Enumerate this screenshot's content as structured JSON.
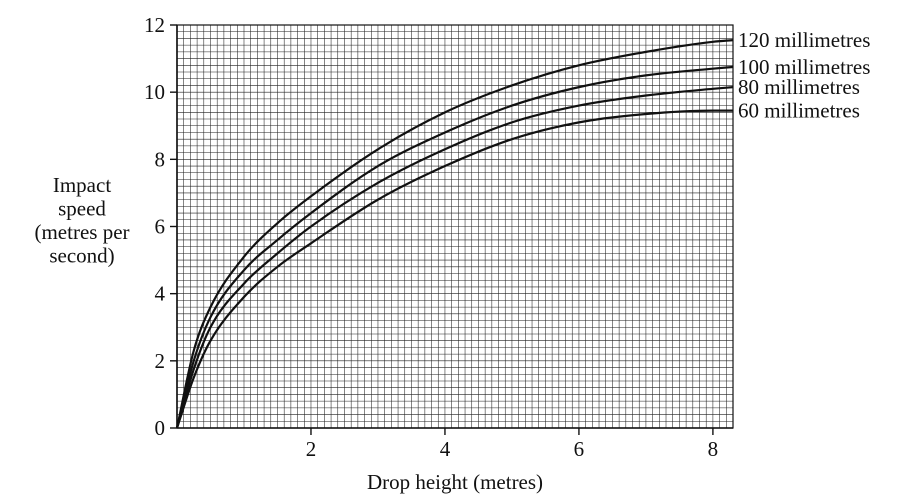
{
  "chart_data": {
    "type": "line",
    "title": "",
    "xlabel": "Drop height (metres)",
    "ylabel_lines": [
      "Impact",
      "speed",
      "(metres per",
      "second)"
    ],
    "xlim": [
      0,
      8.3
    ],
    "ylim": [
      0,
      12
    ],
    "x_ticks": [
      2,
      4,
      6,
      8
    ],
    "y_ticks": [
      0,
      2,
      4,
      6,
      8,
      10,
      12
    ],
    "grid": true,
    "x": [
      0,
      0.25,
      0.5,
      1,
      1.5,
      2,
      3,
      4,
      5,
      6,
      7,
      8,
      8.3
    ],
    "series": [
      {
        "name": "120 millimetres",
        "values": [
          0,
          2.3,
          3.6,
          5.1,
          6.1,
          6.9,
          8.3,
          9.4,
          10.2,
          10.8,
          11.2,
          11.5,
          11.55
        ]
      },
      {
        "name": "100 millimetres",
        "values": [
          0,
          2.0,
          3.3,
          4.7,
          5.6,
          6.4,
          7.8,
          8.8,
          9.6,
          10.15,
          10.5,
          10.7,
          10.75
        ]
      },
      {
        "name": "80 millimetres",
        "values": [
          0,
          1.75,
          3.0,
          4.3,
          5.2,
          6.0,
          7.3,
          8.3,
          9.1,
          9.6,
          9.9,
          10.1,
          10.15
        ]
      },
      {
        "name": "60 millimetres",
        "values": [
          0,
          1.5,
          2.6,
          3.9,
          4.8,
          5.5,
          6.8,
          7.8,
          8.6,
          9.1,
          9.35,
          9.45,
          9.45
        ]
      }
    ]
  }
}
